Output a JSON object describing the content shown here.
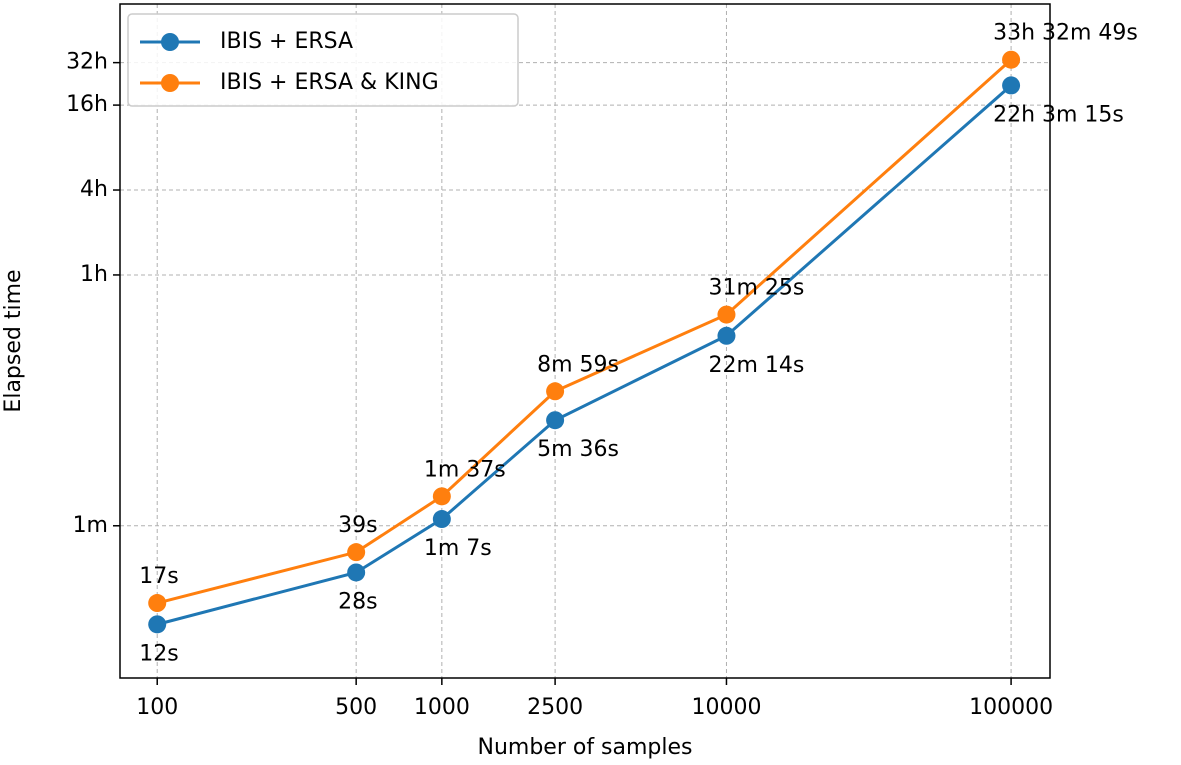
{
  "chart_data": {
    "type": "line",
    "x_label": "Number of samples",
    "y_label": "Elapsed time",
    "x": [
      100,
      500,
      1000,
      2500,
      10000,
      100000
    ],
    "series": [
      {
        "name": "IBIS + ERSA",
        "color": "#1f77b4",
        "values": [
          12,
          28,
          67,
          336,
          1334,
          79395
        ],
        "value_labels": [
          "12s",
          "28s",
          "1m 7s",
          "5m 36s",
          "22m 14s",
          "22h 3m 15s"
        ]
      },
      {
        "name": "IBIS + ERSA & KING",
        "color": "#ff7f0e",
        "values": [
          17,
          39,
          97,
          539,
          1885,
          120769
        ],
        "value_labels": [
          "17s",
          "39s",
          "1m 37s",
          "8m 59s",
          "31m 25s",
          "33h 32m 49s"
        ]
      }
    ],
    "x_log": true,
    "y_log": true,
    "xlim": [
      74,
      137000
    ],
    "ylim": [
      5,
      300000
    ],
    "xticks": [
      100,
      500,
      1000,
      2500,
      10000,
      100000
    ],
    "yticks": [
      {
        "value": 60,
        "label": "1m"
      },
      {
        "value": 3600,
        "label": "1h"
      },
      {
        "value": 14400,
        "label": "4h"
      },
      {
        "value": 57600,
        "label": "16h"
      },
      {
        "value": 115200,
        "label": "32h"
      }
    ],
    "grid": true,
    "legend": "upper left"
  }
}
